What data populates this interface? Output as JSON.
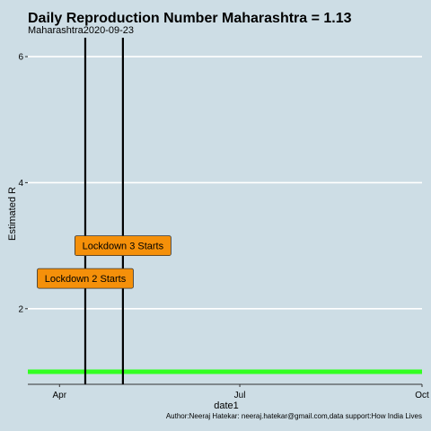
{
  "chart_data": {
    "type": "line",
    "title": "Daily Reproduction Number Maharashtra = 1.13",
    "subtitle": "Maharashtra2020-09-23",
    "xlabel": "date1",
    "ylabel": "Estimated R",
    "caption": "Author:Neeraj Hatekar: neeraj.hatekar@gmail.com,data support:How India Lives",
    "xlim": [
      "2020-03-16",
      "2020-10-01"
    ],
    "ylim": [
      0.8,
      6.3
    ],
    "x_ticks": [
      {
        "date": "2020-04-01",
        "label": "Apr"
      },
      {
        "date": "2020-07-01",
        "label": "Jul"
      },
      {
        "date": "2020-10-01",
        "label": "Oct"
      }
    ],
    "y_ticks": [
      2,
      4,
      6
    ],
    "horizontal_lines": [
      {
        "y": 1,
        "color": "#33ff22"
      }
    ],
    "vertical_lines": [
      {
        "date": "2020-04-14",
        "color": "#000000"
      },
      {
        "date": "2020-05-03",
        "color": "#000000"
      }
    ],
    "annotations": [
      {
        "label": "Lockdown 3 Starts",
        "date": "2020-05-03",
        "y": 3.0,
        "fill": "#f5900a"
      },
      {
        "label": "Lockdown 2 Starts",
        "date": "2020-04-14",
        "y": 2.48,
        "fill": "#f5900a"
      }
    ],
    "grid": true,
    "background": "#cddde5",
    "gridline_color": "#ffffff"
  }
}
